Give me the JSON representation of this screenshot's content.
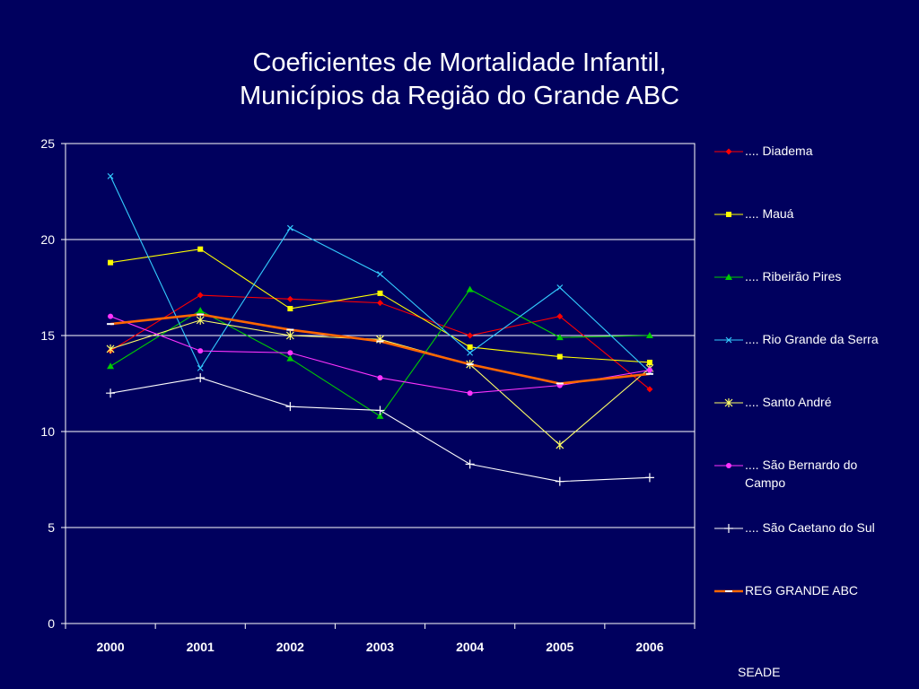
{
  "slide": {
    "title_line1": "Coeficientes de Mortalidade Infantil,",
    "title_line2": "Municípios da Região do Grande ABC",
    "source": "SEADE"
  },
  "colors": {
    "background": "#00005e",
    "grid": "#ffffff",
    "text": "#ffffff"
  },
  "chart_data": {
    "type": "line",
    "title": "Coeficientes de Mortalidade Infantil, Municípios da Região do Grande ABC",
    "xlabel": "",
    "ylabel": "",
    "categories": [
      "2000",
      "2001",
      "2002",
      "2003",
      "2004",
      "2005",
      "2006"
    ],
    "ylim": [
      0,
      25
    ],
    "yticks": [
      0,
      5,
      10,
      15,
      20,
      25
    ],
    "grid": "horizontal",
    "legend": "right",
    "series": [
      {
        "name": ".... Diadema",
        "color": "#ff0000",
        "marker": "diamond",
        "values": [
          14.2,
          17.1,
          16.9,
          16.7,
          15.0,
          16.0,
          12.2
        ]
      },
      {
        "name": ".... Mauá",
        "color": "#ffff00",
        "marker": "square",
        "values": [
          18.8,
          19.5,
          16.4,
          17.2,
          14.4,
          13.9,
          13.6
        ]
      },
      {
        "name": ".... Ribeirão Pires",
        "color": "#00cc00",
        "marker": "triangle",
        "values": [
          13.4,
          16.3,
          13.8,
          10.8,
          17.4,
          14.9,
          15.0
        ]
      },
      {
        "name": ".... Rio Grande da Serra",
        "color": "#33ccff",
        "marker": "x",
        "values": [
          23.3,
          13.3,
          20.6,
          18.2,
          14.1,
          17.5,
          13.1
        ]
      },
      {
        "name": ".... Santo André",
        "color": "#ffff66",
        "marker": "asterisk",
        "values": [
          14.3,
          15.8,
          15.0,
          14.8,
          13.5,
          9.3,
          13.3
        ]
      },
      {
        "name": ".... São Bernardo do Campo",
        "color": "#ff33ff",
        "marker": "circle",
        "values": [
          16.0,
          14.2,
          14.1,
          12.8,
          12.0,
          12.4,
          13.2
        ]
      },
      {
        "name": ".... São Caetano do Sul",
        "color": "#ffffff",
        "marker": "plus",
        "values": [
          12.0,
          12.8,
          11.3,
          11.1,
          8.3,
          7.4,
          7.6
        ]
      },
      {
        "name": "REG GRANDE ABC",
        "color": "#ff6600",
        "marker": "dash",
        "values": [
          15.6,
          16.1,
          15.3,
          14.7,
          13.5,
          12.5,
          13.0
        ]
      }
    ]
  }
}
